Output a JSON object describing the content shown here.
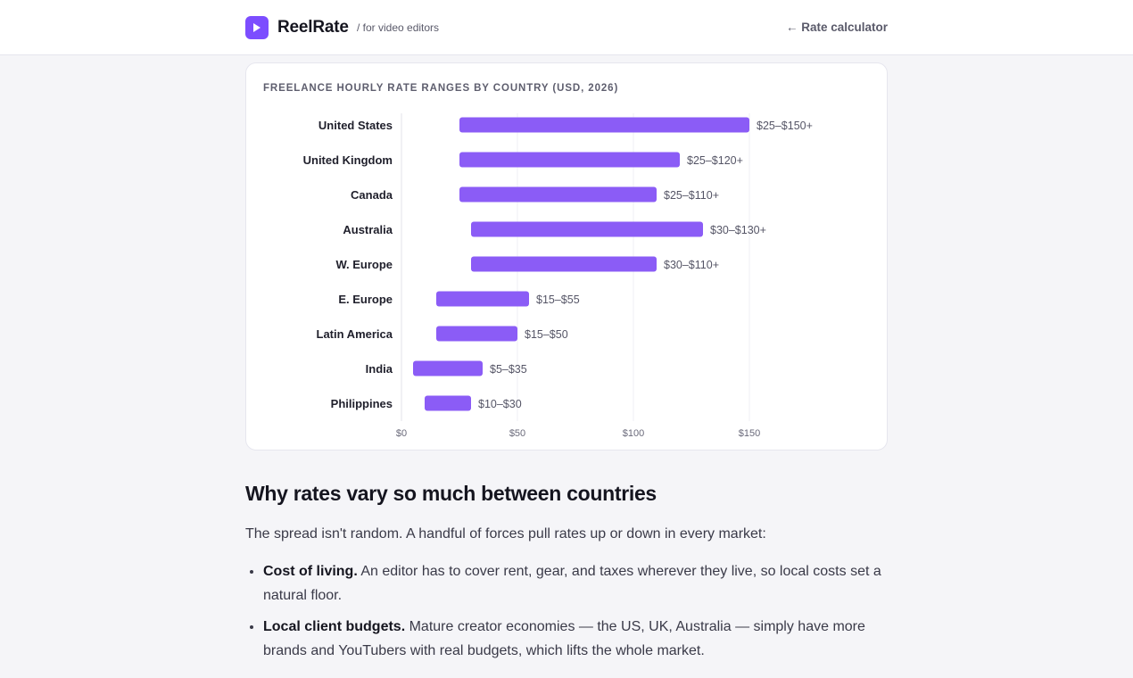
{
  "header": {
    "brand": "ReelRate",
    "tagline": "/ for video editors",
    "nav_link": "← Rate calculator",
    "accent": "#7c4dff"
  },
  "chart_card": {
    "title": "Freelance hourly rate ranges by country (USD, 2026)"
  },
  "chart_data": {
    "type": "bar",
    "orientation": "horizontal-range",
    "title": "Freelance hourly rate ranges by country (USD, 2026)",
    "categories": [
      "United States",
      "United Kingdom",
      "Canada",
      "Australia",
      "W. Europe",
      "E. Europe",
      "Latin America",
      "India",
      "Philippines"
    ],
    "series": [
      {
        "low": [
          25,
          25,
          25,
          30,
          30,
          15,
          15,
          5,
          10
        ],
        "high": [
          150,
          120,
          110,
          130,
          110,
          55,
          50,
          35,
          30
        ],
        "labels": [
          "$25–$150+",
          "$25–$120+",
          "$25–$110+",
          "$30–$130+",
          "$30–$110+",
          "$15–$55",
          "$15–$50",
          "$5–$35",
          "$10–$30"
        ]
      }
    ],
    "xlim": [
      0,
      150
    ],
    "xticks": [
      0,
      50,
      100,
      150
    ],
    "xtick_labels": [
      "$0",
      "$50",
      "$100",
      "$150"
    ],
    "grid": true,
    "bar_color": "#8b5cf6"
  },
  "article": {
    "heading": "Why rates vary so much between countries",
    "intro": "The spread isn't random. A handful of forces pull rates up or down in every market:",
    "bullets": [
      {
        "term": "Cost of living.",
        "text": " An editor has to cover rent, gear, and taxes wherever they live, so local costs set a natural floor."
      },
      {
        "term": "Local client budgets.",
        "text": " Mature creator economies — the US, UK, Australia — simply have more brands and YouTubers with real budgets, which lifts the whole market."
      }
    ]
  }
}
